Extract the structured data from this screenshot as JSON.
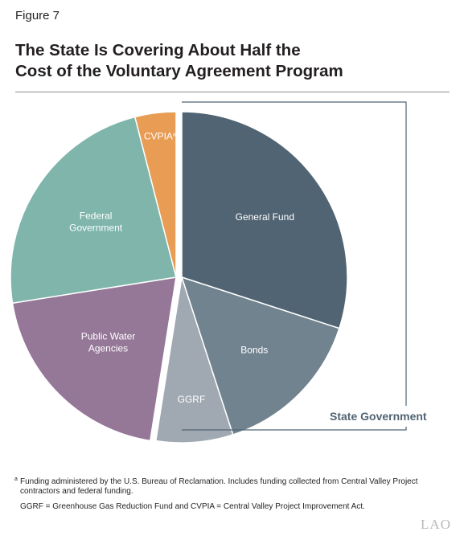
{
  "figure_label": "Figure 7",
  "title_lines": [
    "The State Is Covering About Half the",
    "Cost of the Voluntary Agreement Program"
  ],
  "chart_data": {
    "type": "pie",
    "title": "The State Is Covering About Half the Cost of the Voluntary Agreement Program",
    "slices": [
      {
        "label": "General Fund",
        "value": 30,
        "color": "#516473",
        "text_color": "#ffffff",
        "group": "State Government"
      },
      {
        "label": "Bonds",
        "value": 15,
        "color": "#728390",
        "text_color": "#ffffff",
        "group": "State Government"
      },
      {
        "label": "GGRF",
        "value": 7.5,
        "color": "#a0a8b1",
        "text_color": "#ffffff",
        "group": "State Government"
      },
      {
        "label": "Public Water Agencies",
        "value": 20,
        "color": "#957797",
        "text_color": "#ffffff",
        "group": ""
      },
      {
        "label": "Federal Government",
        "value": 23.5,
        "color": "#7fb5ab",
        "text_color": "#ffffff",
        "group": ""
      },
      {
        "label": "CVPIAa",
        "value": 4,
        "color": "#e89c54",
        "text_color": "#ffffff",
        "group": ""
      }
    ],
    "group_bracket_label": "State Government",
    "group_bracket_color": "#516473",
    "exploded_group": "State Government"
  },
  "footnotes": {
    "marker": "a",
    "note": "Funding administered by the U.S. Bureau of Reclamation. Includes funding collected from Central Valley Project contractors and federal funding.",
    "abbreviations": "GGRF = Greenhouse Gas Reduction Fund and CVPIA = Central Valley Project Improvement Act."
  },
  "brand": "LAO"
}
